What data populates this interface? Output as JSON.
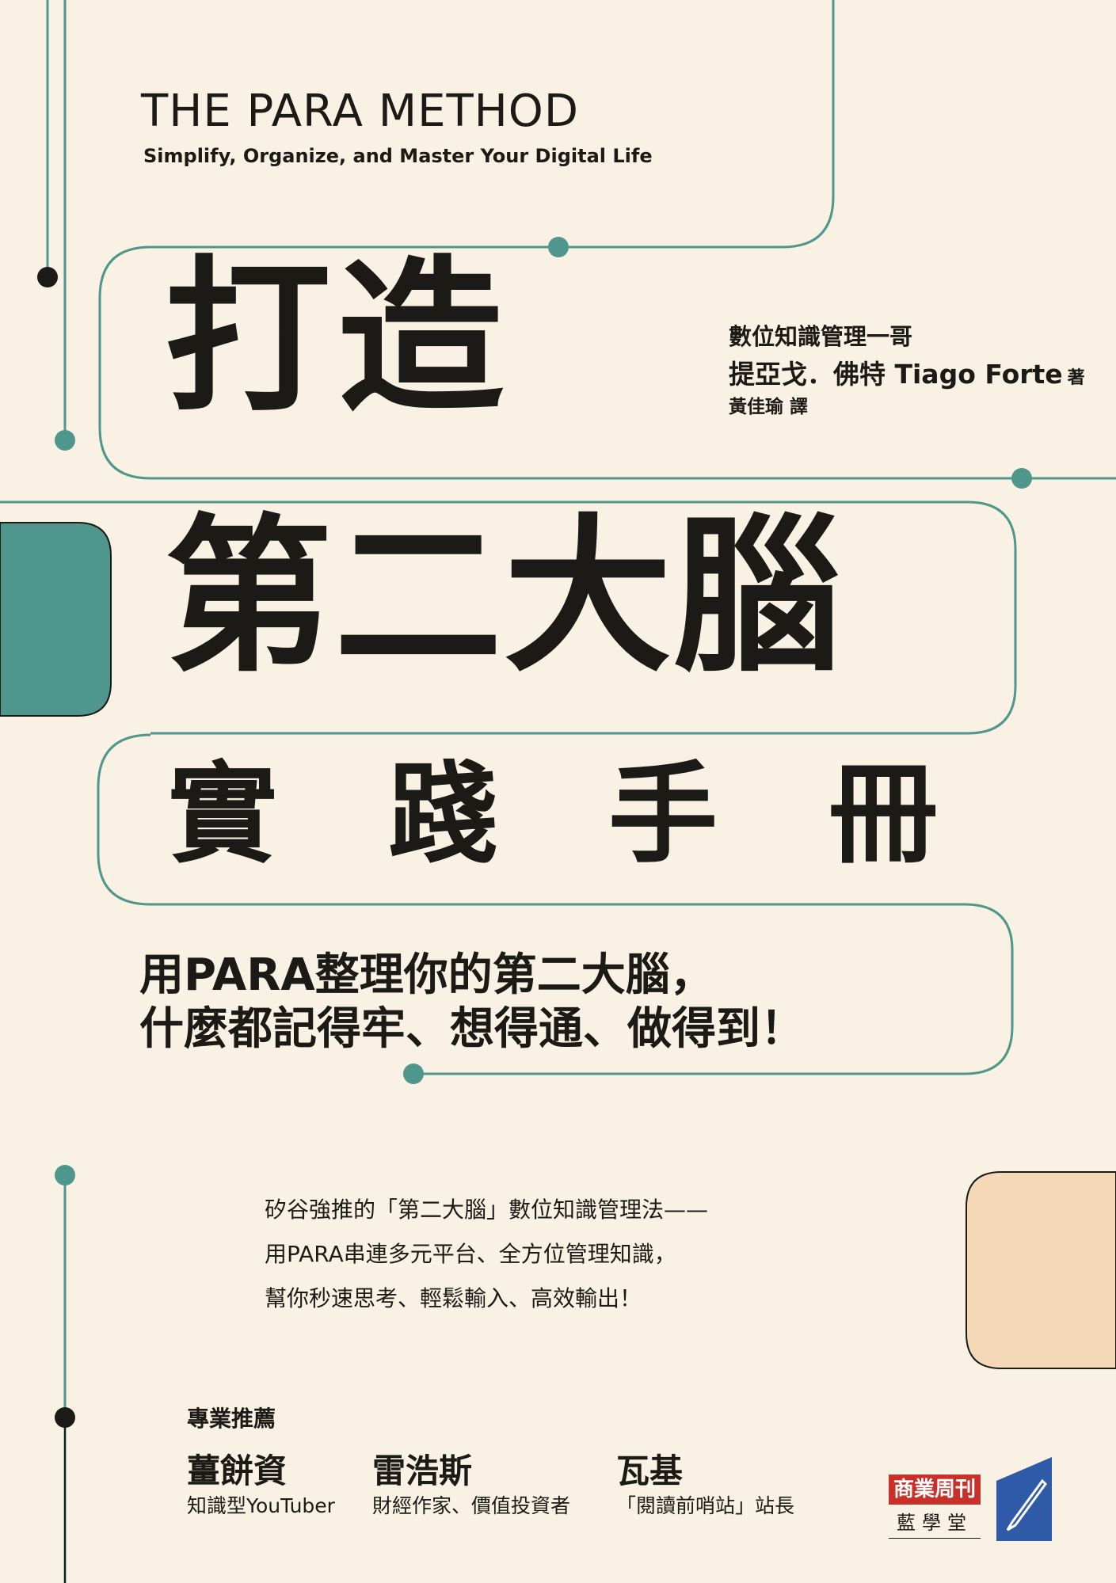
{
  "colors": {
    "background": "#faf1e5",
    "teal": "#4f978c",
    "peach": "#f4d8b7",
    "text": "#1c1a17",
    "publisher_red": "#c8302a",
    "publisher_blue": "#2f5aa8"
  },
  "header": {
    "title_en": "THE PARA METHOD",
    "subtitle_en": "Simplify, Organize, and Master Your Digital Life"
  },
  "main_title": {
    "line1": "打造",
    "line2": "第二大腦",
    "line3": "實踐手冊"
  },
  "author": {
    "line1": "數位知識管理一哥",
    "name": "提亞戈．佛特 Tiago Forte",
    "name_suffix": "著",
    "translator": "黃佳瑜 譯"
  },
  "tagline": {
    "line1": "用PARA整理你的第二大腦，",
    "line2": "什麼都記得牢、想得通、做得到！"
  },
  "blurb": [
    "矽谷強推的「第二大腦」數位知識管理法——",
    "用PARA串連多元平台、全方位管理知識，",
    "幫你秒速思考、輕鬆輸入、高效輸出！"
  ],
  "recommend": {
    "heading": "專業推薦",
    "people": [
      {
        "name": "薑餅資",
        "desc": "知識型YouTuber"
      },
      {
        "name": "雷浩斯",
        "desc": "財經作家、價值投資者"
      },
      {
        "name": "瓦基",
        "desc": "「閱讀前哨站」站長"
      }
    ]
  },
  "publisher": {
    "brand": "商業周刊",
    "imprint": "藍學堂",
    "logo_icon": "pen-logo-icon"
  }
}
